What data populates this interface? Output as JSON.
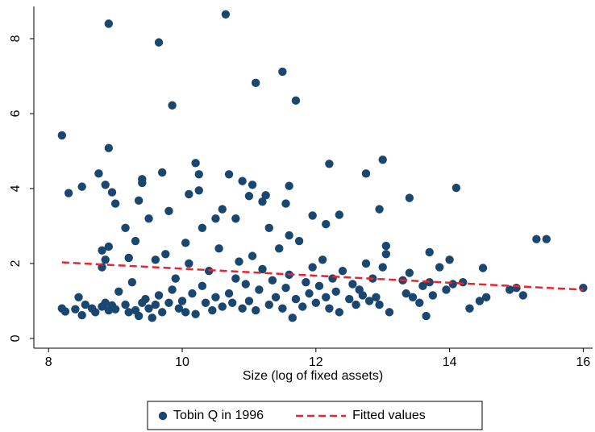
{
  "chart_data": {
    "type": "scatter",
    "xlabel": "Size (log of fixed assets)",
    "xlim": [
      7.78,
      16.14
    ],
    "xticks": [
      8,
      10,
      12,
      14,
      16
    ],
    "ylim": [
      -0.26,
      8.86
    ],
    "yticks": [
      0,
      2,
      4,
      6,
      8
    ],
    "legend": "bottom",
    "series": [
      {
        "name": "Tobin Q in 1996",
        "color": "#1a476f",
        "mark": "point",
        "x": [
          8.9,
          9.65,
          10.65,
          11.5,
          11.1,
          11.7,
          9.85,
          8.2,
          8.9,
          13.0,
          12.2,
          14.1,
          12.75,
          11.6,
          10.2,
          10.25,
          9.7,
          10.7,
          10.9,
          11.05,
          9.4,
          8.75,
          8.5,
          8.3,
          8.85,
          8.95,
          9.35,
          9.8,
          10.1,
          10.25,
          10.5,
          10.6,
          10.8,
          11.0,
          11.2,
          11.25,
          11.55,
          11.95,
          12.15,
          12.35,
          12.95,
          13.4,
          15.3,
          15.45,
          14.0,
          14.5,
          13.7,
          13.05,
          9.3,
          9.5,
          8.2,
          8.25,
          8.4,
          8.45,
          8.5,
          8.55,
          8.65,
          8.7,
          8.8,
          8.85,
          8.9,
          8.95,
          9.0,
          8.8,
          8.85,
          8.8,
          8.9,
          9.05,
          9.15,
          9.2,
          9.25,
          9.3,
          9.35,
          9.4,
          9.45,
          9.5,
          9.55,
          9.6,
          9.65,
          9.7,
          9.8,
          9.85,
          9.9,
          9.95,
          10.0,
          10.05,
          10.1,
          10.15,
          10.2,
          10.3,
          10.35,
          10.4,
          10.45,
          10.5,
          10.55,
          10.6,
          10.7,
          10.75,
          10.8,
          10.85,
          10.9,
          10.95,
          11.0,
          11.05,
          11.1,
          11.15,
          11.2,
          11.3,
          11.35,
          11.4,
          11.45,
          11.5,
          11.55,
          11.6,
          11.65,
          11.7,
          11.75,
          11.8,
          11.85,
          11.9,
          11.95,
          12.0,
          12.05,
          12.1,
          12.15,
          12.2,
          12.25,
          12.3,
          12.35,
          12.4,
          12.5,
          12.55,
          12.6,
          12.65,
          12.7,
          12.75,
          12.8,
          12.85,
          12.9,
          12.95,
          13.0,
          13.05,
          13.1,
          13.3,
          13.35,
          13.4,
          13.45,
          13.55,
          13.6,
          13.65,
          13.7,
          13.75,
          13.85,
          13.95,
          14.05,
          14.2,
          14.3,
          14.45,
          14.55,
          14.9,
          15.1,
          15.0,
          16.0,
          9.0,
          9.15,
          9.2,
          9.4,
          9.6,
          9.75,
          10.05,
          10.3,
          11.3,
          11.6
        ],
        "values": [
          8.4,
          7.9,
          8.65,
          7.12,
          6.82,
          6.35,
          6.22,
          5.42,
          5.08,
          4.77,
          4.66,
          4.02,
          4.4,
          4.07,
          4.68,
          4.38,
          4.43,
          4.38,
          4.2,
          4.1,
          4.25,
          4.4,
          4.05,
          3.88,
          4.1,
          3.9,
          3.68,
          3.4,
          3.85,
          3.95,
          3.2,
          3.45,
          3.2,
          3.8,
          3.65,
          3.82,
          3.6,
          3.28,
          3.05,
          3.3,
          3.45,
          3.75,
          2.65,
          2.65,
          2.1,
          1.88,
          2.3,
          2.47,
          2.6,
          3.2,
          0.8,
          0.72,
          0.78,
          1.1,
          0.62,
          0.9,
          0.8,
          0.7,
          0.85,
          0.95,
          0.75,
          0.88,
          0.78,
          1.9,
          2.1,
          2.35,
          2.45,
          1.25,
          0.9,
          0.7,
          1.5,
          0.75,
          0.6,
          0.95,
          1.05,
          0.8,
          0.55,
          0.9,
          1.15,
          0.7,
          0.95,
          1.3,
          1.6,
          0.8,
          1.0,
          0.7,
          2.0,
          1.2,
          0.65,
          1.4,
          0.95,
          1.8,
          0.75,
          1.1,
          2.4,
          0.85,
          1.2,
          0.95,
          1.6,
          2.05,
          0.8,
          1.45,
          1.0,
          2.2,
          0.75,
          1.3,
          1.85,
          0.9,
          1.55,
          1.1,
          2.4,
          0.8,
          1.35,
          1.7,
          0.55,
          1.05,
          2.6,
          0.85,
          1.5,
          1.2,
          1.9,
          0.95,
          1.4,
          2.1,
          1.1,
          0.8,
          1.6,
          1.25,
          0.7,
          1.8,
          1.05,
          1.45,
          0.9,
          1.3,
          1.15,
          2.0,
          1.0,
          1.6,
          1.1,
          0.9,
          1.9,
          2.25,
          0.7,
          1.55,
          1.2,
          1.75,
          1.1,
          0.95,
          1.4,
          0.6,
          1.5,
          1.15,
          1.9,
          1.3,
          1.45,
          1.5,
          0.8,
          1.0,
          1.1,
          1.3,
          1.15,
          1.35,
          1.35,
          3.6,
          2.95,
          2.15,
          4.15,
          2.1,
          2.25,
          2.55,
          2.95,
          2.95,
          2.75
        ]
      },
      {
        "name": "Fitted values",
        "color": "#e8242e",
        "mark": "dashed-line",
        "x": [
          8.2,
          16
        ],
        "values": [
          2.03,
          1.3
        ]
      }
    ]
  }
}
